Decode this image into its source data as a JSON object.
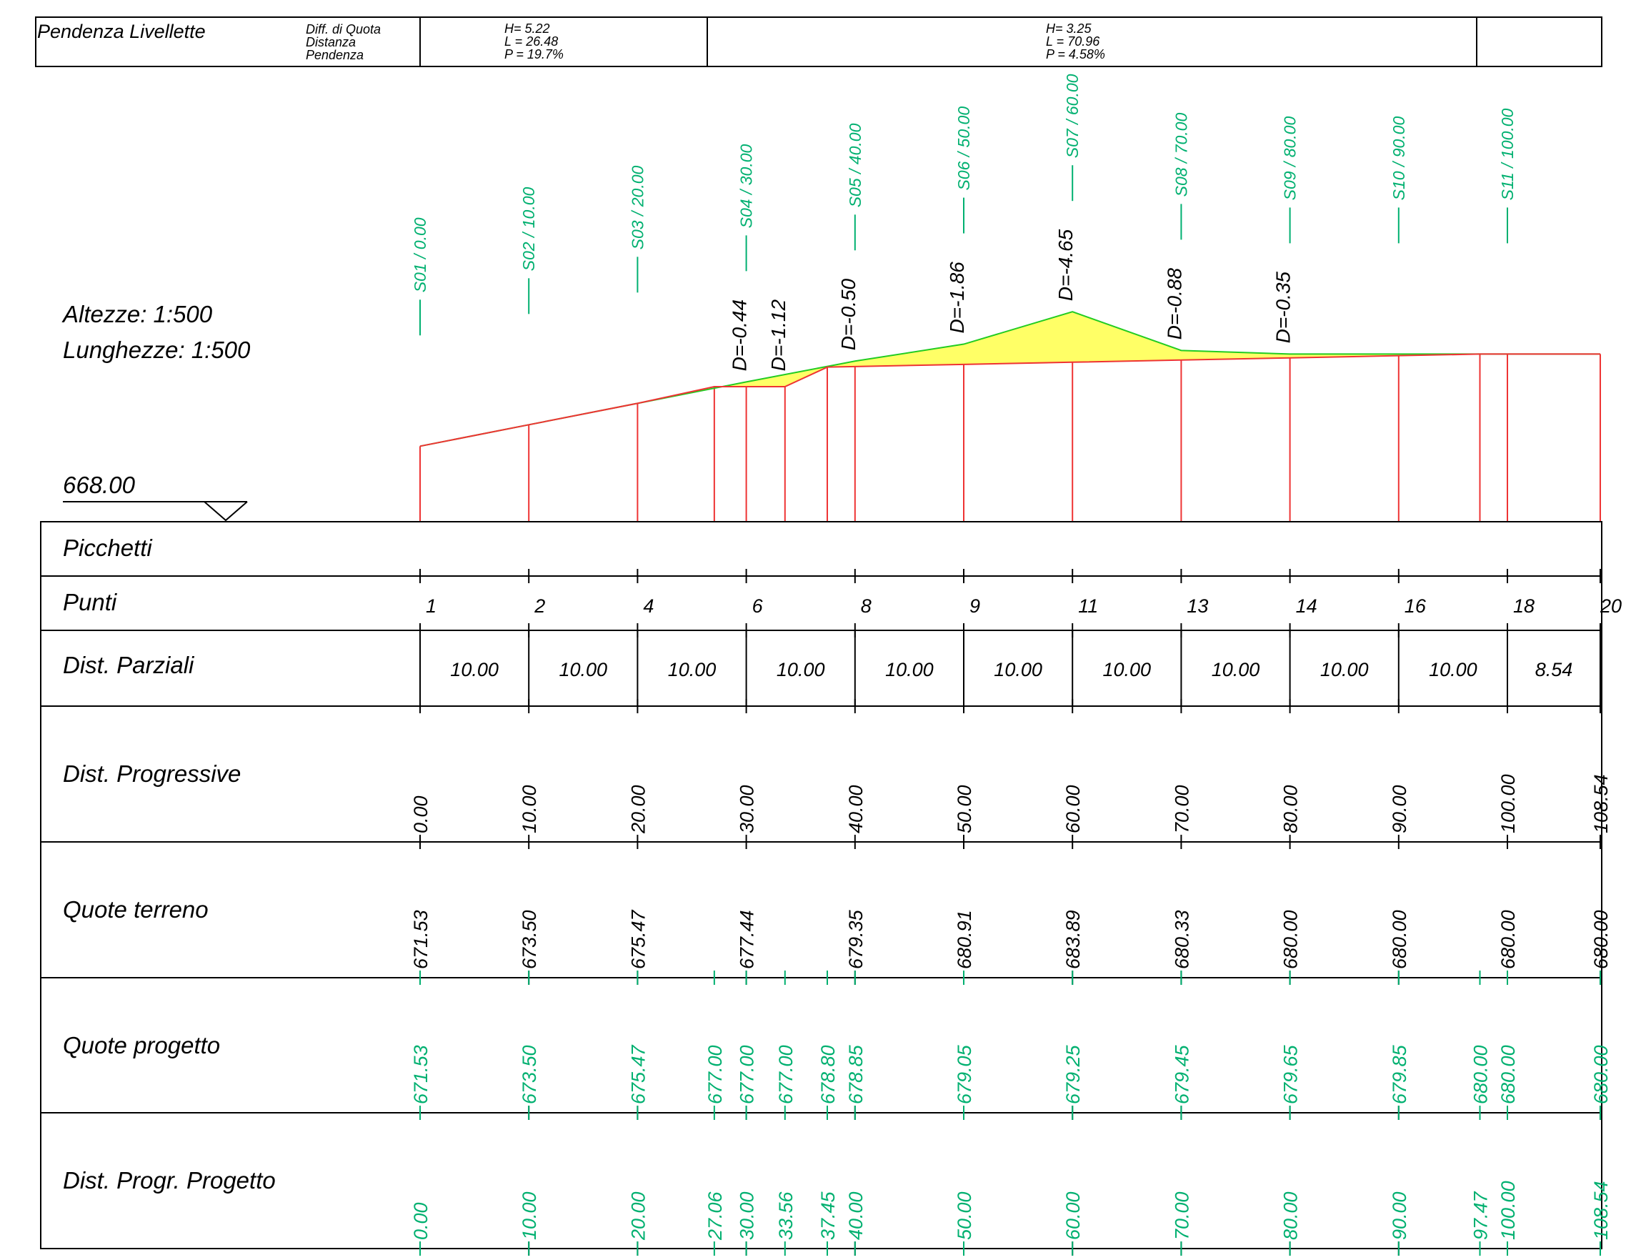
{
  "header": {
    "title": "Pendenza Livellette",
    "legend": [
      "Diff. di Quota",
      "Distanza",
      "Pendenza"
    ],
    "segments": [
      {
        "lines": [
          "H= 5.22",
          "L = 26.48",
          "P = 19.7%"
        ]
      },
      {
        "lines": [
          "H= 3.25",
          "L = 70.96",
          "P = 4.58%"
        ]
      }
    ]
  },
  "scales": {
    "heights": "Altezze:  1:500",
    "lengths": "Lunghezze: 1:500",
    "datum": "668.00"
  },
  "colors": {
    "green": "#00b070",
    "terrain": "#22cc22",
    "project": "#ee3333",
    "fill": "#ffff66",
    "grid": "#000000"
  },
  "sections": [
    {
      "label": "S01 / 0.00",
      "station": 0
    },
    {
      "label": "S02 / 10.00",
      "station": 10
    },
    {
      "label": "S03 / 20.00",
      "station": 20
    },
    {
      "label": "S04 / 30.00",
      "station": 30
    },
    {
      "label": "S05 / 40.00",
      "station": 40
    },
    {
      "label": "S06 / 50.00",
      "station": 50
    },
    {
      "label": "S07 / 60.00",
      "station": 60
    },
    {
      "label": "S08 / 70.00",
      "station": 70
    },
    {
      "label": "S09 / 80.00",
      "station": 80
    },
    {
      "label": "S10 / 90.00",
      "station": 90
    },
    {
      "label": "S11 / 100.00",
      "station": 100
    }
  ],
  "differences": [
    {
      "label": "D=-0.44",
      "station": 30
    },
    {
      "label": "D=-1.12",
      "station": 33.56
    },
    {
      "label": "D=-0.50",
      "station": 40
    },
    {
      "label": "D=-1.86",
      "station": 50
    },
    {
      "label": "D=-4.65",
      "station": 60
    },
    {
      "label": "D=-0.88",
      "station": 70
    },
    {
      "label": "D=-0.35",
      "station": 80
    }
  ],
  "terrain_profile": [
    {
      "d": 0,
      "z": 671.53
    },
    {
      "d": 10,
      "z": 673.5
    },
    {
      "d": 20,
      "z": 675.47
    },
    {
      "d": 27.06,
      "z": 676.86
    },
    {
      "d": 30,
      "z": 677.44
    },
    {
      "d": 40,
      "z": 679.35
    },
    {
      "d": 50,
      "z": 680.91
    },
    {
      "d": 60,
      "z": 683.89
    },
    {
      "d": 70,
      "z": 680.33
    },
    {
      "d": 80,
      "z": 680.0
    },
    {
      "d": 90,
      "z": 680.0
    },
    {
      "d": 100,
      "z": 680.0
    },
    {
      "d": 108.54,
      "z": 680.0
    }
  ],
  "project_profile": [
    {
      "d": 0,
      "z": 671.53
    },
    {
      "d": 10,
      "z": 673.5
    },
    {
      "d": 20,
      "z": 675.47
    },
    {
      "d": 27.06,
      "z": 677.0
    },
    {
      "d": 30,
      "z": 677.0
    },
    {
      "d": 33.56,
      "z": 677.0
    },
    {
      "d": 37.45,
      "z": 678.8
    },
    {
      "d": 40,
      "z": 678.85
    },
    {
      "d": 50,
      "z": 679.05
    },
    {
      "d": 60,
      "z": 679.25
    },
    {
      "d": 70,
      "z": 679.45
    },
    {
      "d": 80,
      "z": 679.65
    },
    {
      "d": 90,
      "z": 679.85
    },
    {
      "d": 97.47,
      "z": 680.0
    },
    {
      "d": 100,
      "z": 680.0
    },
    {
      "d": 108.54,
      "z": 680.0
    }
  ],
  "table": {
    "rows": {
      "picchetti": "Picchetti",
      "punti": "Punti",
      "parziali": "Dist. Parziali",
      "progressive": "Dist. Progressive",
      "terreno": "Quote terreno",
      "progetto": "Quote progetto",
      "progr_progetto": "Dist. Progr. Progetto"
    },
    "punti": [
      {
        "label": "1",
        "station": 0
      },
      {
        "label": "2",
        "station": 10
      },
      {
        "label": "4",
        "station": 20
      },
      {
        "label": "6",
        "station": 30
      },
      {
        "label": "8",
        "station": 40
      },
      {
        "label": "9",
        "station": 50
      },
      {
        "label": "11",
        "station": 60
      },
      {
        "label": "13",
        "station": 70
      },
      {
        "label": "14",
        "station": 80
      },
      {
        "label": "16",
        "station": 90
      },
      {
        "label": "18",
        "station": 100
      },
      {
        "label": "20",
        "station": 108.54
      }
    ],
    "parziali": [
      "10.00",
      "10.00",
      "10.00",
      "10.00",
      "10.00",
      "10.00",
      "10.00",
      "10.00",
      "10.00",
      "10.00",
      "8.54"
    ],
    "progressive": [
      {
        "label": "0.00",
        "station": 0
      },
      {
        "label": "10.00",
        "station": 10
      },
      {
        "label": "20.00",
        "station": 20
      },
      {
        "label": "30.00",
        "station": 30
      },
      {
        "label": "40.00",
        "station": 40
      },
      {
        "label": "50.00",
        "station": 50
      },
      {
        "label": "60.00",
        "station": 60
      },
      {
        "label": "70.00",
        "station": 70
      },
      {
        "label": "80.00",
        "station": 80
      },
      {
        "label": "90.00",
        "station": 90
      },
      {
        "label": "100.00",
        "station": 100
      },
      {
        "label": "108.54",
        "station": 108.54
      }
    ],
    "terreno": [
      {
        "label": "671.53",
        "station": 0
      },
      {
        "label": "673.50",
        "station": 10
      },
      {
        "label": "675.47",
        "station": 20
      },
      {
        "label": "677.44",
        "station": 30
      },
      {
        "label": "679.35",
        "station": 40
      },
      {
        "label": "680.91",
        "station": 50
      },
      {
        "label": "683.89",
        "station": 60
      },
      {
        "label": "680.33",
        "station": 70
      },
      {
        "label": "680.00",
        "station": 80
      },
      {
        "label": "680.00",
        "station": 90
      },
      {
        "label": "680.00",
        "station": 100
      },
      {
        "label": "680.00",
        "station": 108.54
      }
    ],
    "progetto": [
      {
        "label": "671.53",
        "station": 0
      },
      {
        "label": "673.50",
        "station": 10
      },
      {
        "label": "675.47",
        "station": 20
      },
      {
        "label": "677.00",
        "station": 27.06
      },
      {
        "label": "677.00",
        "station": 30
      },
      {
        "label": "677.00",
        "station": 33.56
      },
      {
        "label": "678.80",
        "station": 37.45
      },
      {
        "label": "678.85",
        "station": 40
      },
      {
        "label": "679.05",
        "station": 50
      },
      {
        "label": "679.25",
        "station": 60
      },
      {
        "label": "679.45",
        "station": 70
      },
      {
        "label": "679.65",
        "station": 80
      },
      {
        "label": "679.85",
        "station": 90
      },
      {
        "label": "680.00",
        "station": 97.47
      },
      {
        "label": "680.00",
        "station": 100
      },
      {
        "label": "680.00",
        "station": 108.54
      }
    ],
    "progr_progetto": [
      {
        "label": "0.00",
        "station": 0
      },
      {
        "label": "10.00",
        "station": 10
      },
      {
        "label": "20.00",
        "station": 20
      },
      {
        "label": "27.06",
        "station": 27.06
      },
      {
        "label": "30.00",
        "station": 30
      },
      {
        "label": "33.56",
        "station": 33.56
      },
      {
        "label": "37.45",
        "station": 37.45
      },
      {
        "label": "40.00",
        "station": 40
      },
      {
        "label": "50.00",
        "station": 50
      },
      {
        "label": "60.00",
        "station": 60
      },
      {
        "label": "70.00",
        "station": 70
      },
      {
        "label": "80.00",
        "station": 80
      },
      {
        "label": "90.00",
        "station": 90
      },
      {
        "label": "97.47",
        "station": 97.47
      },
      {
        "label": "100.00",
        "station": 100
      },
      {
        "label": "108.54",
        "station": 108.54
      }
    ]
  }
}
